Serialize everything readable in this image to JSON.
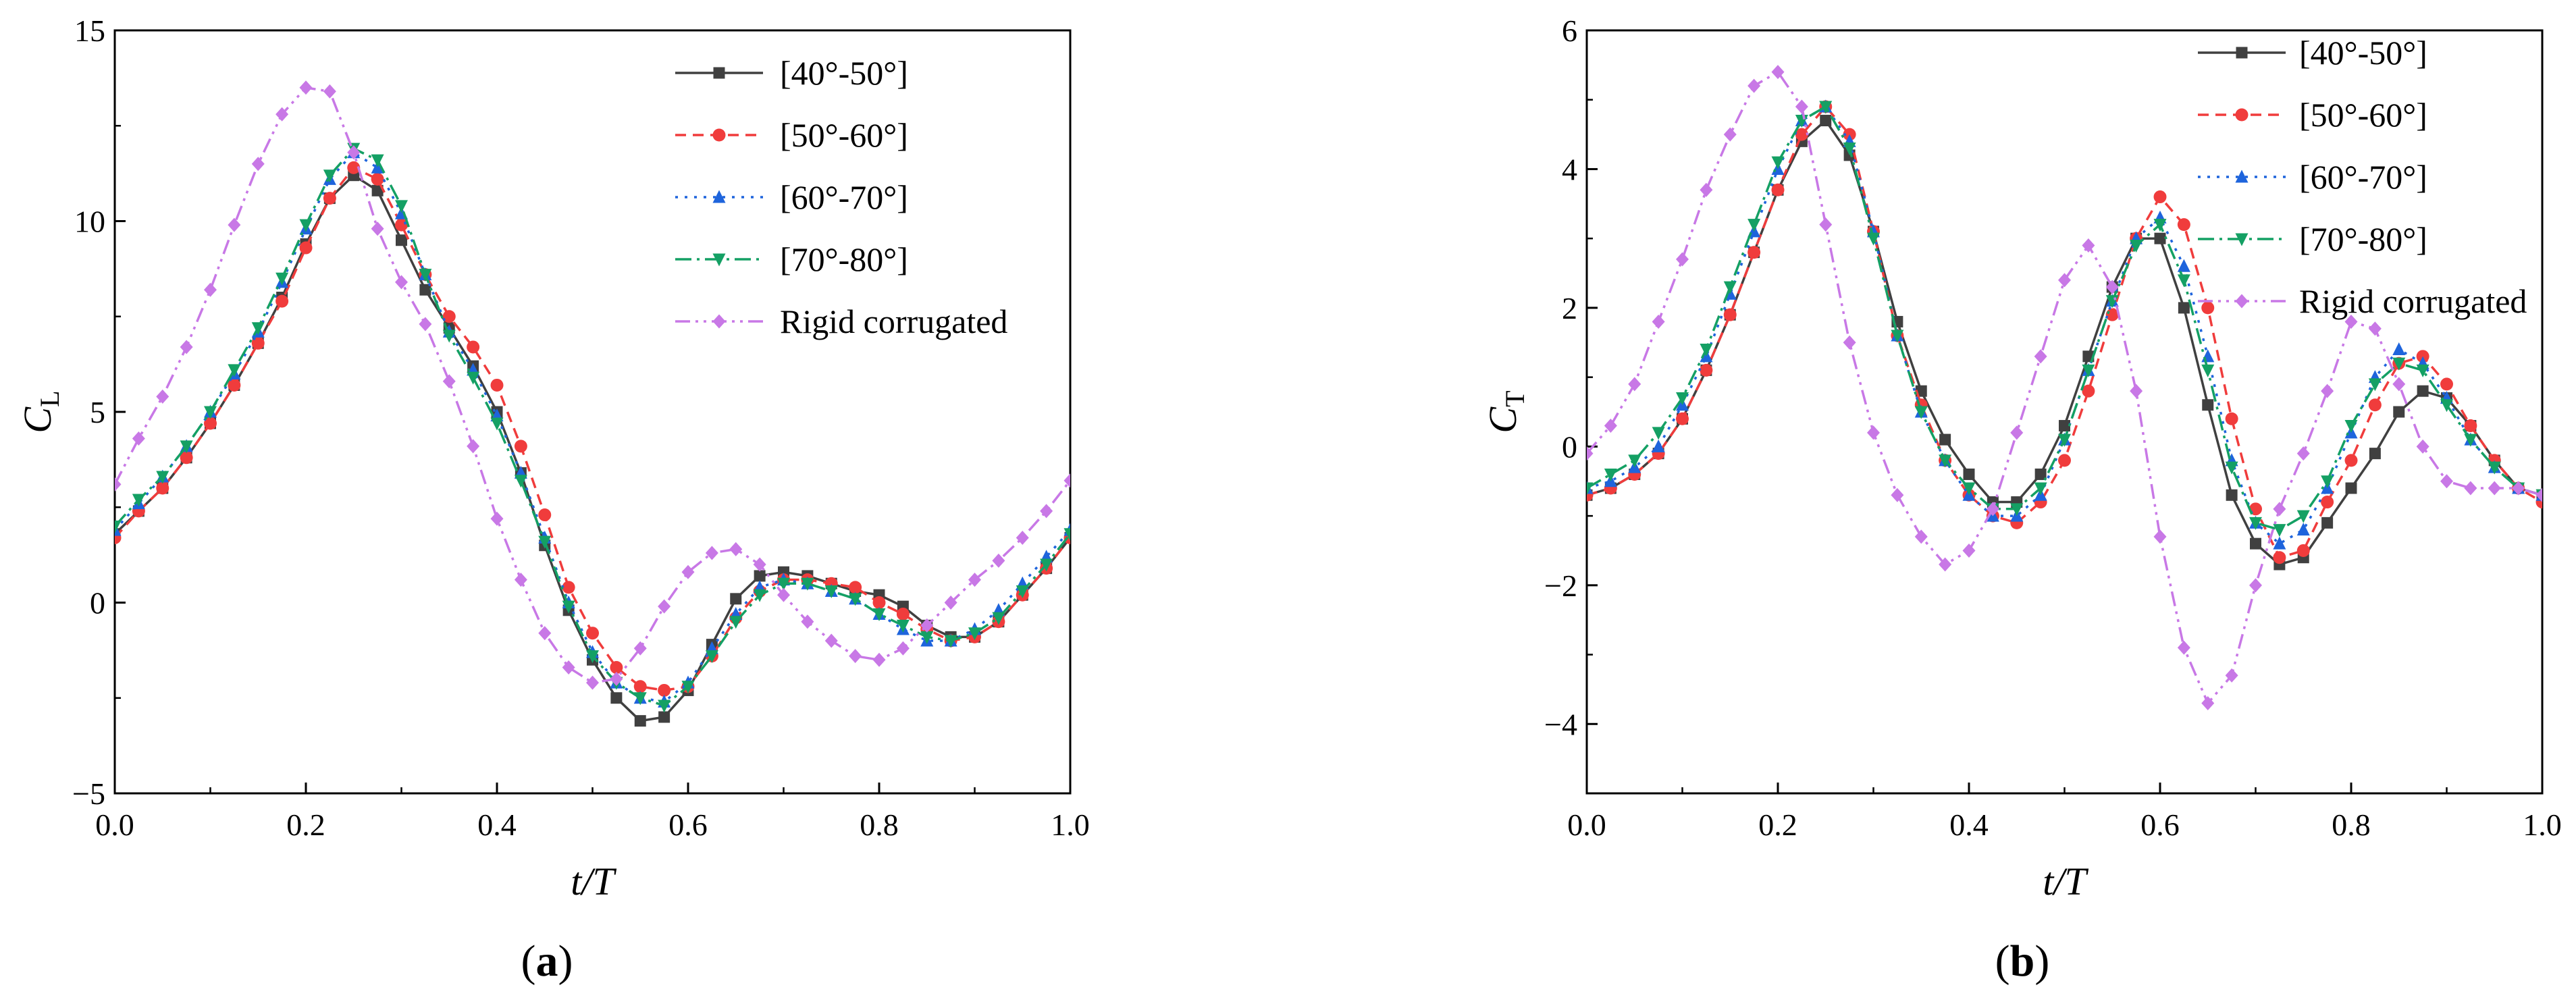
{
  "chart_data": [
    {
      "type": "line",
      "panel_label": "a",
      "xlabel": "t/T",
      "ylabel": "C",
      "ylabel_sub": "L",
      "xlim": [
        0.0,
        1.0
      ],
      "ylim": [
        -5,
        15
      ],
      "xticks": [
        "0.0",
        "0.2",
        "0.4",
        "0.6",
        "0.8",
        "1.0"
      ],
      "xtick_values": [
        0.0,
        0.2,
        0.4,
        0.6,
        0.8,
        1.0
      ],
      "yticks": [
        "−5",
        "0",
        "5",
        "10",
        "15"
      ],
      "ytick_values": [
        -5,
        0,
        5,
        10,
        15
      ],
      "legend_position": "top-right",
      "x": [
        0.0,
        0.025,
        0.05,
        0.075,
        0.1,
        0.125,
        0.15,
        0.175,
        0.2,
        0.225,
        0.25,
        0.275,
        0.3,
        0.325,
        0.35,
        0.375,
        0.4,
        0.425,
        0.45,
        0.475,
        0.5,
        0.525,
        0.55,
        0.575,
        0.6,
        0.625,
        0.65,
        0.675,
        0.7,
        0.725,
        0.75,
        0.775,
        0.8,
        0.825,
        0.85,
        0.875,
        0.9,
        0.925,
        0.95,
        0.975,
        1.0
      ],
      "series": [
        {
          "name": "[40°-50°]",
          "color": "#404040",
          "dash": "solid",
          "marker": "square",
          "values": [
            1.8,
            2.4,
            3.0,
            3.8,
            4.7,
            5.7,
            6.8,
            8.0,
            9.4,
            10.6,
            11.2,
            10.8,
            9.5,
            8.2,
            7.2,
            6.2,
            5.0,
            3.4,
            1.5,
            -0.2,
            -1.5,
            -2.5,
            -3.1,
            -3.0,
            -2.3,
            -1.1,
            0.1,
            0.7,
            0.8,
            0.7,
            0.5,
            0.3,
            0.2,
            -0.1,
            -0.6,
            -0.9,
            -0.9,
            -0.5,
            0.2,
            0.9,
            1.7
          ]
        },
        {
          "name": "[50°-60°]",
          "color": "#f03c3c",
          "dash": "16,10",
          "marker": "circle",
          "values": [
            1.7,
            2.4,
            3.0,
            3.8,
            4.7,
            5.7,
            6.8,
            7.9,
            9.3,
            10.6,
            11.4,
            11.1,
            9.9,
            8.6,
            7.5,
            6.7,
            5.7,
            4.1,
            2.3,
            0.4,
            -0.8,
            -1.7,
            -2.2,
            -2.3,
            -2.2,
            -1.4,
            -0.4,
            0.3,
            0.6,
            0.6,
            0.5,
            0.4,
            0.0,
            -0.3,
            -0.7,
            -1.0,
            -0.9,
            -0.5,
            0.2,
            0.9,
            1.7
          ]
        },
        {
          "name": "[60°-70°]",
          "color": "#1e64dc",
          "dash": "4,10",
          "marker": "triangle-up",
          "values": [
            1.9,
            2.6,
            3.3,
            4.1,
            5.0,
            6.0,
            7.1,
            8.4,
            9.8,
            11.1,
            11.8,
            11.4,
            10.2,
            8.6,
            7.1,
            6.1,
            4.9,
            3.4,
            1.7,
            0.0,
            -1.3,
            -2.1,
            -2.5,
            -2.6,
            -2.1,
            -1.2,
            -0.3,
            0.4,
            0.6,
            0.5,
            0.3,
            0.1,
            -0.3,
            -0.7,
            -1.0,
            -1.0,
            -0.7,
            -0.2,
            0.5,
            1.2,
            1.9
          ]
        },
        {
          "name": "[70°-80°]",
          "color": "#14a064",
          "dash": "24,8,4,8",
          "marker": "triangle-down",
          "values": [
            2.0,
            2.7,
            3.3,
            4.1,
            5.0,
            6.1,
            7.2,
            8.5,
            9.9,
            11.2,
            11.9,
            11.6,
            10.4,
            8.6,
            7.0,
            5.9,
            4.7,
            3.2,
            1.6,
            -0.1,
            -1.4,
            -2.1,
            -2.5,
            -2.7,
            -2.2,
            -1.4,
            -0.5,
            0.2,
            0.5,
            0.5,
            0.3,
            0.1,
            -0.3,
            -0.6,
            -0.9,
            -1.0,
            -0.8,
            -0.4,
            0.3,
            1.0,
            1.8
          ]
        },
        {
          "name": "Rigid corrugated",
          "color": "#c878e6",
          "dash": "22,8,4,8,4,8",
          "marker": "diamond",
          "values": [
            3.1,
            4.3,
            5.4,
            6.7,
            8.2,
            9.9,
            11.5,
            12.8,
            13.5,
            13.4,
            11.8,
            9.8,
            8.4,
            7.3,
            5.8,
            4.1,
            2.2,
            0.6,
            -0.8,
            -1.7,
            -2.1,
            -2.0,
            -1.2,
            -0.1,
            0.8,
            1.3,
            1.4,
            1.0,
            0.2,
            -0.5,
            -1.0,
            -1.4,
            -1.5,
            -1.2,
            -0.6,
            0.0,
            0.6,
            1.1,
            1.7,
            2.4,
            3.2
          ]
        }
      ]
    },
    {
      "type": "line",
      "panel_label": "b",
      "xlabel": "t/T",
      "ylabel": "C",
      "ylabel_sub": "T",
      "xlim": [
        0.0,
        1.0
      ],
      "ylim": [
        -5,
        6
      ],
      "xticks": [
        "0.0",
        "0.2",
        "0.4",
        "0.6",
        "0.8",
        "1.0"
      ],
      "xtick_values": [
        0.0,
        0.2,
        0.4,
        0.6,
        0.8,
        1.0
      ],
      "yticks": [
        "−4",
        "−2",
        "0",
        "2",
        "4",
        "6"
      ],
      "ytick_values": [
        -4,
        -2,
        0,
        2,
        4,
        6
      ],
      "legend_position": "top-right",
      "x": [
        0.0,
        0.025,
        0.05,
        0.075,
        0.1,
        0.125,
        0.15,
        0.175,
        0.2,
        0.225,
        0.25,
        0.275,
        0.3,
        0.325,
        0.35,
        0.375,
        0.4,
        0.425,
        0.45,
        0.475,
        0.5,
        0.525,
        0.55,
        0.575,
        0.6,
        0.625,
        0.65,
        0.675,
        0.7,
        0.725,
        0.75,
        0.775,
        0.8,
        0.825,
        0.85,
        0.875,
        0.9,
        0.925,
        0.95,
        0.975,
        1.0
      ],
      "series": [
        {
          "name": "[40°-50°]",
          "color": "#404040",
          "dash": "solid",
          "marker": "square",
          "values": [
            -0.7,
            -0.6,
            -0.4,
            -0.1,
            0.4,
            1.1,
            1.9,
            2.8,
            3.7,
            4.4,
            4.7,
            4.2,
            3.1,
            1.8,
            0.8,
            0.1,
            -0.4,
            -0.8,
            -0.8,
            -0.4,
            0.3,
            1.3,
            2.3,
            3.0,
            3.0,
            2.0,
            0.6,
            -0.7,
            -1.4,
            -1.7,
            -1.6,
            -1.1,
            -0.6,
            -0.1,
            0.5,
            0.8,
            0.7,
            0.3,
            -0.2,
            -0.6,
            -0.7
          ]
        },
        {
          "name": "[50°-60°]",
          "color": "#f03c3c",
          "dash": "16,10",
          "marker": "circle",
          "values": [
            -0.7,
            -0.6,
            -0.4,
            -0.1,
            0.4,
            1.1,
            1.9,
            2.8,
            3.7,
            4.5,
            4.9,
            4.5,
            3.1,
            1.6,
            0.6,
            -0.2,
            -0.7,
            -1.0,
            -1.1,
            -0.8,
            -0.2,
            0.8,
            1.9,
            3.0,
            3.6,
            3.2,
            2.0,
            0.4,
            -0.9,
            -1.6,
            -1.5,
            -0.8,
            -0.2,
            0.6,
            1.2,
            1.3,
            0.9,
            0.3,
            -0.2,
            -0.6,
            -0.8
          ]
        },
        {
          "name": "[60°-70°]",
          "color": "#1e64dc",
          "dash": "4,10",
          "marker": "triangle-up",
          "values": [
            -0.6,
            -0.5,
            -0.3,
            0.0,
            0.6,
            1.3,
            2.2,
            3.1,
            4.0,
            4.7,
            4.9,
            4.4,
            3.1,
            1.6,
            0.5,
            -0.2,
            -0.7,
            -1.0,
            -1.0,
            -0.7,
            0.1,
            1.1,
            2.1,
            3.0,
            3.3,
            2.6,
            1.3,
            -0.2,
            -1.1,
            -1.4,
            -1.2,
            -0.6,
            0.2,
            1.0,
            1.4,
            1.2,
            0.7,
            0.1,
            -0.3,
            -0.6,
            -0.7
          ]
        },
        {
          "name": "[70°-80°]",
          "color": "#14a064",
          "dash": "24,8,4,8",
          "marker": "triangle-down",
          "values": [
            -0.6,
            -0.4,
            -0.2,
            0.2,
            0.7,
            1.4,
            2.3,
            3.2,
            4.1,
            4.7,
            4.9,
            4.3,
            3.0,
            1.6,
            0.5,
            -0.2,
            -0.6,
            -0.9,
            -0.9,
            -0.6,
            0.1,
            1.1,
            2.1,
            2.9,
            3.2,
            2.4,
            1.1,
            -0.3,
            -1.1,
            -1.2,
            -1.0,
            -0.5,
            0.3,
            0.9,
            1.2,
            1.1,
            0.6,
            0.1,
            -0.3,
            -0.6,
            -0.7
          ]
        },
        {
          "name": "Rigid corrugated",
          "color": "#c878e6",
          "dash": "22,8,4,8,4,8",
          "marker": "diamond",
          "values": [
            -0.1,
            0.3,
            0.9,
            1.8,
            2.7,
            3.7,
            4.5,
            5.2,
            5.4,
            4.9,
            3.2,
            1.5,
            0.2,
            -0.7,
            -1.3,
            -1.7,
            -1.5,
            -0.9,
            0.2,
            1.3,
            2.4,
            2.9,
            2.3,
            0.8,
            -1.3,
            -2.9,
            -3.7,
            -3.3,
            -2.0,
            -0.9,
            -0.1,
            0.8,
            1.8,
            1.7,
            0.9,
            0.0,
            -0.5,
            -0.6,
            -0.6,
            -0.6,
            -0.7
          ]
        }
      ]
    }
  ]
}
